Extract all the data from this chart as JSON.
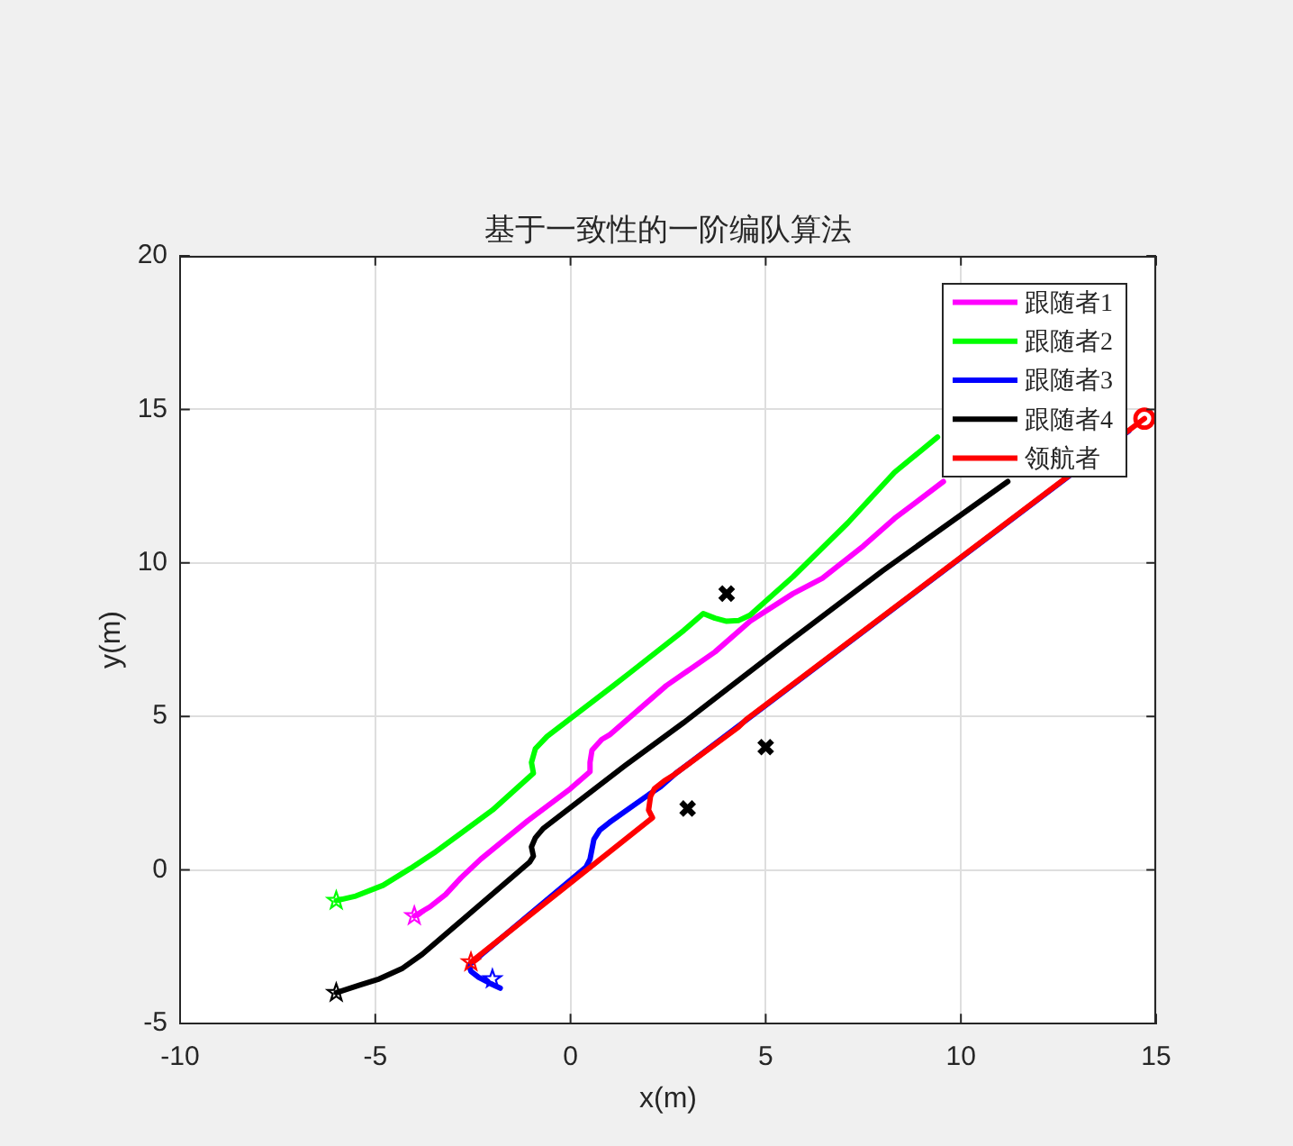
{
  "chart_data": {
    "type": "line",
    "title": "基于一致性的一阶编队算法",
    "xlabel": "x(m)",
    "ylabel": "y(m)",
    "xlim": [
      -10,
      15
    ],
    "ylim": [
      -5,
      20
    ],
    "xticks": [
      -10,
      -5,
      0,
      5,
      10,
      15
    ],
    "yticks": [
      -5,
      0,
      5,
      10,
      15,
      20
    ],
    "grid": true,
    "legend": "top right",
    "line_style": "solid",
    "series": [
      {
        "name": "跟随者1",
        "color": "#ff00ff",
        "x": [
          -4,
          -3.6,
          -3.2,
          -2.8,
          -2.3,
          -1.1,
          0.0,
          0.5,
          0.5,
          0.55,
          0.8,
          1.0,
          2.45,
          3.7,
          4.6,
          5.7,
          6.45,
          7.5,
          8.3,
          9.55
        ],
        "values": [
          -1.5,
          -1.2,
          -0.8,
          -0.25,
          0.35,
          1.6,
          2.65,
          3.2,
          3.5,
          3.9,
          4.25,
          4.4,
          6.0,
          7.1,
          8.1,
          9.0,
          9.5,
          10.55,
          11.45,
          12.65
        ]
      },
      {
        "name": "跟随者2",
        "color": "#00ff00",
        "x": [
          -6,
          -5.5,
          -4.8,
          -4.1,
          -3.5,
          -2.0,
          -0.95,
          -1.0,
          -0.9,
          -0.6,
          1.2,
          1.5,
          2.9,
          3.4,
          3.7,
          4.0,
          4.3,
          4.6,
          5.7,
          7.1,
          8.3,
          9.4
        ],
        "values": [
          -1,
          -0.85,
          -0.5,
          0.05,
          0.55,
          1.95,
          3.15,
          3.5,
          3.95,
          4.35,
          6.1,
          6.4,
          7.8,
          8.35,
          8.2,
          8.1,
          8.12,
          8.3,
          9.55,
          11.3,
          12.95,
          14.1
        ]
      },
      {
        "name": "跟随者3",
        "color": "#0000ff",
        "x": [
          -1.8,
          -2.05,
          -2.35,
          -2.55,
          -2.6,
          0.4,
          0.5,
          0.6,
          0.75,
          1.0,
          2.0,
          2.3,
          2.7,
          14.3
        ],
        "values": [
          -3.85,
          -3.7,
          -3.5,
          -3.3,
          -3.1,
          0.1,
          0.35,
          1.0,
          1.3,
          1.55,
          2.45,
          2.7,
          3.15,
          14.3
        ]
      },
      {
        "name": "跟随者4",
        "color": "#000000",
        "x": [
          -6,
          -5.4,
          -4.9,
          -4.3,
          -3.8,
          -1.05,
          -0.95,
          -1.0,
          -0.9,
          -0.7,
          1.4,
          2.9,
          5.45,
          8.0,
          11.2
        ],
        "values": [
          -4,
          -3.75,
          -3.55,
          -3.2,
          -2.75,
          0.25,
          0.45,
          0.75,
          1.05,
          1.35,
          3.4,
          4.8,
          7.3,
          9.75,
          12.65
        ]
      },
      {
        "name": "领航者",
        "color": "#ff0000",
        "x": [
          -2.55,
          2.1,
          2.0,
          2.05,
          2.15,
          2.4,
          2.65,
          4.3,
          4.5,
          14.7
        ],
        "values": [
          -3.0,
          1.7,
          1.95,
          2.4,
          2.65,
          2.9,
          3.1,
          4.65,
          4.9,
          14.7
        ]
      },
      {
        "type": "scatter",
        "color": "#000000",
        "marker": "cross",
        "x": [
          4,
          5,
          3
        ],
        "values": [
          9,
          4,
          2
        ]
      },
      {
        "type": "scatter",
        "colors": [
          "#ff00ff",
          "#00ff00",
          "#0000ff",
          "#000000",
          "#ff0000"
        ],
        "marker": "star",
        "x": [
          -4,
          -6,
          -2.0,
          -6,
          -2.55
        ],
        "values": [
          -1.5,
          -1,
          -3.55,
          -4,
          -3.0
        ]
      },
      {
        "type": "scatter",
        "color": "#ff0000",
        "marker": "circle",
        "x": [
          14.7
        ],
        "values": [
          14.7
        ]
      }
    ]
  }
}
